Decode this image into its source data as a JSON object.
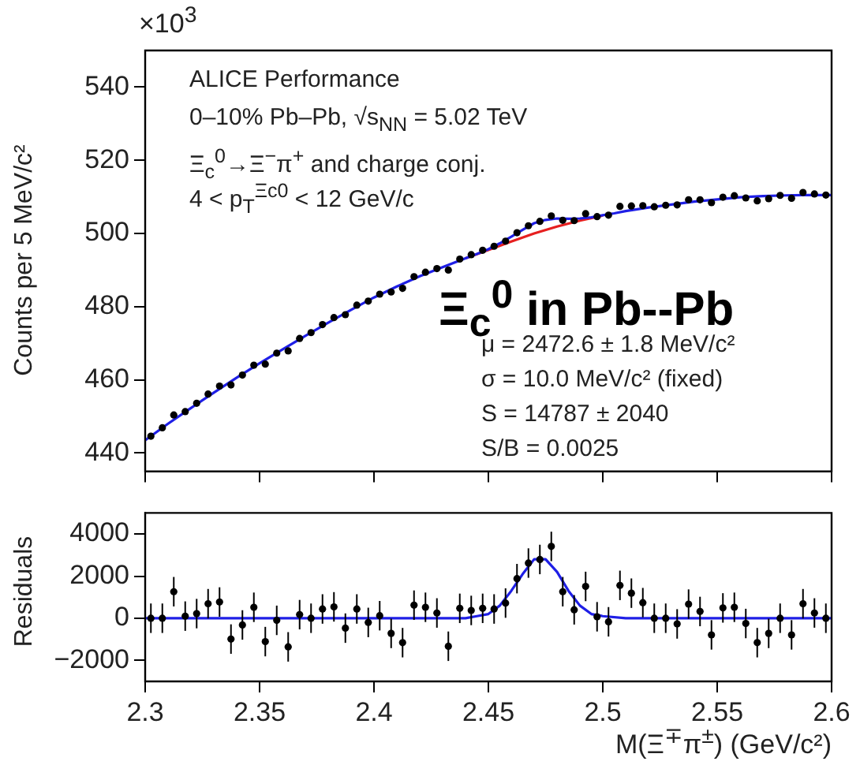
{
  "chart_data": [
    {
      "type": "scatter",
      "ylabel": "Counts per 5 MeV/c²",
      "annotations": [
        "×10$^{3}$",
        "ALICE Performance",
        "0–10% Pb–Pb, √s$_{NN}$ = 5.02 TeV",
        "Ξ$_{c}$$^{0}$→Ξ$^{−}$π$^{+}$ and charge conj.",
        "4 < p$_{T}$$^{Ξc0}$ < 12 GeV/c",
        "Ξ$_{c}$$^{0}$ in Pb--Pb",
        "μ = 2472.6 ± 1.8 MeV/c²",
        "σ = 10.0 MeV/c² (fixed)",
        "S = 14787 ± 2040",
        "S/B = 0.0025"
      ],
      "xlim": [
        2.3,
        2.6
      ],
      "xticks": [
        2.3,
        2.35,
        2.4,
        2.45,
        2.5,
        2.55,
        2.6
      ],
      "ylim": [
        435,
        550
      ],
      "yticks": [
        440,
        460,
        480,
        500,
        520,
        540
      ],
      "tick_labels": "y",
      "legend": false,
      "grid": false,
      "series": [
        {
          "type": "scatter",
          "marker": "circle",
          "color": "#000000",
          "x": [
            2.3025,
            2.3075,
            2.3125,
            2.3175,
            2.3225,
            2.3275,
            2.3325,
            2.3375,
            2.3425,
            2.3475,
            2.3525,
            2.3575,
            2.3625,
            2.3675,
            2.3725,
            2.3775,
            2.3825,
            2.3875,
            2.3925,
            2.3975,
            2.4025,
            2.4075,
            2.4125,
            2.4175,
            2.4225,
            2.4275,
            2.4325,
            2.4375,
            2.4425,
            2.4475,
            2.4525,
            2.4575,
            2.4625,
            2.4675,
            2.4725,
            2.4775,
            2.4825,
            2.4875,
            2.4925,
            2.4975,
            2.5025,
            2.5075,
            2.5125,
            2.5175,
            2.5225,
            2.5275,
            2.5325,
            2.5375,
            2.5425,
            2.5475,
            2.5525,
            2.5575,
            2.5625,
            2.5675,
            2.5725,
            2.5775,
            2.5825,
            2.5875,
            2.5925,
            2.5975
          ],
          "values": [
            444.6,
            446.9,
            450.4,
            451.3,
            453.6,
            456.1,
            458.3,
            458.6,
            461.3,
            464.0,
            464.3,
            467.3,
            467.9,
            471.3,
            472.9,
            475.1,
            477.0,
            477.8,
            480.4,
            481.5,
            483.4,
            484.0,
            485.0,
            488.2,
            489.4,
            490.4,
            490.0,
            493.0,
            494.2,
            495.4,
            496.5,
            497.9,
            500.2,
            502.1,
            503.3,
            504.8,
            503.6,
            503.5,
            505.4,
            504.6,
            505.0,
            507.4,
            507.5,
            507.6,
            507.3,
            507.7,
            507.8,
            509.2,
            509.2,
            508.4,
            509.9,
            510.3,
            509.7,
            508.9,
            509.5,
            510.4,
            509.6,
            511.2,
            510.8,
            510.5
          ],
          "errors": [
            0.7,
            0.7,
            0.7,
            0.7,
            0.7,
            0.7,
            0.7,
            0.7,
            0.7,
            0.7,
            0.7,
            0.7,
            0.7,
            0.7,
            0.7,
            0.7,
            0.7,
            0.7,
            0.7,
            0.7,
            0.7,
            0.7,
            0.7,
            0.7,
            0.7,
            0.7,
            0.7,
            0.7,
            0.7,
            0.7,
            0.7,
            0.7,
            0.7,
            0.7,
            0.7,
            0.7,
            0.7,
            0.7,
            0.7,
            0.7,
            0.7,
            0.7,
            0.7,
            0.7,
            0.7,
            0.7,
            0.7,
            0.7,
            0.7,
            0.7,
            0.7,
            0.7,
            0.7,
            0.7,
            0.7,
            0.7,
            0.7,
            0.7,
            0.7,
            0.7
          ]
        },
        {
          "type": "line",
          "marker": "none",
          "color": "#1f1fe6",
          "x": [
            2.3,
            2.31,
            2.32,
            2.33,
            2.34,
            2.35,
            2.36,
            2.37,
            2.38,
            2.39,
            2.4,
            2.41,
            2.42,
            2.43,
            2.44,
            2.445,
            2.45,
            2.455,
            2.46,
            2.465,
            2.47,
            2.475,
            2.48,
            2.485,
            2.49,
            2.495,
            2.5,
            2.505,
            2.51,
            2.52,
            2.53,
            2.54,
            2.55,
            2.56,
            2.57,
            2.58,
            2.59,
            2.6
          ],
          "values": [
            443.5,
            448.0,
            452.3,
            456.5,
            460.6,
            464.5,
            468.3,
            472.0,
            475.6,
            479.1,
            482.5,
            485.5,
            488.3,
            490.8,
            493.2,
            494.4,
            495.7,
            497.3,
            499.1,
            501.0,
            502.8,
            503.7,
            504.1,
            504.0,
            504.1,
            504.4,
            505.0,
            505.5,
            506.1,
            507.1,
            507.9,
            508.7,
            509.3,
            509.9,
            510.2,
            510.4,
            510.5,
            510.5
          ]
        },
        {
          "type": "line",
          "marker": "none",
          "color": "#e61f1f",
          "x": [
            2.44,
            2.45,
            2.46,
            2.47,
            2.48,
            2.49,
            2.5
          ],
          "values": [
            493.2,
            495.5,
            497.8,
            500.0,
            501.9,
            503.5,
            504.9
          ]
        }
      ]
    },
    {
      "type": "scatter",
      "ylabel": "Residuals",
      "xlabel": "M(Ξ$^{∓}$π$^{±}$) (GeV/c²)",
      "xlim": [
        2.3,
        2.6
      ],
      "xticks": [
        2.3,
        2.35,
        2.4,
        2.45,
        2.5,
        2.55,
        2.6
      ],
      "ylim": [
        -3000,
        5000
      ],
      "yticks": [
        {
          "value": -2000,
          "label": "−2000"
        },
        0,
        2000,
        4000
      ],
      "legend": false,
      "grid": false,
      "series": [
        {
          "type": "scatter",
          "marker": "circle",
          "color": "#000000",
          "x": [
            2.3025,
            2.3075,
            2.3125,
            2.3175,
            2.3225,
            2.3275,
            2.3325,
            2.3375,
            2.3425,
            2.3475,
            2.3525,
            2.3575,
            2.3625,
            2.3675,
            2.3725,
            2.3775,
            2.3825,
            2.3875,
            2.3925,
            2.3975,
            2.4025,
            2.4075,
            2.4125,
            2.4175,
            2.4225,
            2.4275,
            2.4325,
            2.4375,
            2.4425,
            2.4475,
            2.4525,
            2.4575,
            2.4625,
            2.4675,
            2.4725,
            2.4775,
            2.4825,
            2.4875,
            2.4925,
            2.4975,
            2.5025,
            2.5075,
            2.5125,
            2.5175,
            2.5225,
            2.5275,
            2.5325,
            2.5375,
            2.5425,
            2.5475,
            2.5525,
            2.5575,
            2.5625,
            2.5675,
            2.5725,
            2.5775,
            2.5825,
            2.5875,
            2.5925,
            2.5975
          ],
          "values": [
            0,
            0,
            1260,
            100,
            220,
            690,
            770,
            -990,
            -320,
            520,
            -1110,
            -100,
            -1360,
            170,
            0,
            440,
            540,
            -470,
            440,
            -200,
            120,
            -720,
            -1160,
            620,
            520,
            250,
            -1330,
            470,
            370,
            470,
            440,
            720,
            1880,
            2620,
            2790,
            3410,
            1260,
            400,
            1510,
            70,
            -170,
            1560,
            1190,
            740,
            0,
            0,
            -270,
            670,
            320,
            -790,
            490,
            520,
            -250,
            -1160,
            -720,
            0,
            -790,
            690,
            250,
            0
          ],
          "errors": [
            700,
            700,
            700,
            700,
            700,
            700,
            700,
            700,
            700,
            700,
            700,
            700,
            700,
            700,
            700,
            700,
            700,
            700,
            700,
            700,
            700,
            700,
            700,
            700,
            700,
            700,
            700,
            700,
            700,
            700,
            700,
            700,
            700,
            700,
            700,
            700,
            700,
            700,
            700,
            700,
            700,
            700,
            700,
            700,
            700,
            700,
            700,
            700,
            700,
            700,
            700,
            700,
            700,
            700,
            700,
            700,
            700,
            700,
            700,
            700
          ]
        },
        {
          "type": "line",
          "marker": "none",
          "color": "#1f1fe6",
          "x": [
            2.3,
            2.44,
            2.445,
            2.45,
            2.455,
            2.46,
            2.465,
            2.47,
            2.475,
            2.48,
            2.485,
            2.49,
            2.495,
            2.5,
            2.51,
            2.6
          ],
          "values": [
            0,
            0,
            100,
            200,
            600,
            1300,
            2100,
            2800,
            2800,
            2200,
            1300,
            600,
            200,
            100,
            0,
            0
          ]
        }
      ]
    }
  ]
}
